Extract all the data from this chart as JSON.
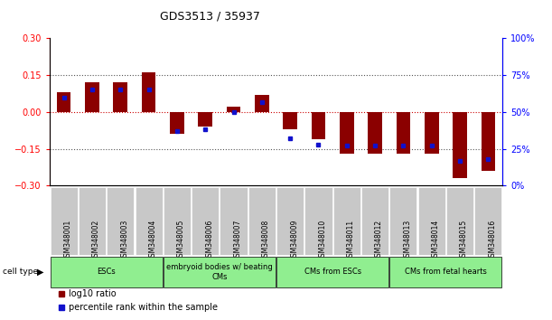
{
  "title": "GDS3513 / 35937",
  "samples": [
    "GSM348001",
    "GSM348002",
    "GSM348003",
    "GSM348004",
    "GSM348005",
    "GSM348006",
    "GSM348007",
    "GSM348008",
    "GSM348009",
    "GSM348010",
    "GSM348011",
    "GSM348012",
    "GSM348013",
    "GSM348014",
    "GSM348015",
    "GSM348016"
  ],
  "log10_ratio": [
    0.08,
    0.12,
    0.12,
    0.16,
    -0.09,
    -0.06,
    0.02,
    0.07,
    -0.07,
    -0.11,
    -0.17,
    -0.17,
    -0.17,
    -0.17,
    -0.27,
    -0.24
  ],
  "percentile_rank": [
    60,
    65,
    65,
    65,
    37,
    38,
    50,
    57,
    32,
    28,
    27,
    27,
    27,
    27,
    17,
    18
  ],
  "ylim_left": [
    -0.3,
    0.3
  ],
  "ylim_right": [
    0,
    100
  ],
  "bar_color": "#8B0000",
  "dot_color": "#1111CC",
  "zero_line_color": "#CC0000",
  "dotted_line_color": "#555555",
  "cell_type_groups": [
    {
      "label": "ESCs",
      "start": 0,
      "end": 3,
      "color": "#90EE90"
    },
    {
      "label": "embryoid bodies w/ beating\nCMs",
      "start": 4,
      "end": 7,
      "color": "#90EE90"
    },
    {
      "label": "CMs from ESCs",
      "start": 8,
      "end": 11,
      "color": "#90EE90"
    },
    {
      "label": "CMs from fetal hearts",
      "start": 12,
      "end": 15,
      "color": "#90EE90"
    }
  ],
  "legend_labels": [
    "log10 ratio",
    "percentile rank within the sample"
  ],
  "legend_colors": [
    "#8B0000",
    "#1111CC"
  ],
  "left_yticks": [
    -0.3,
    -0.15,
    0,
    0.15,
    0.3
  ],
  "right_yticks": [
    0,
    25,
    50,
    75,
    100
  ],
  "right_yticklabels": [
    "0%",
    "25%",
    "50%",
    "75%",
    "100%"
  ]
}
